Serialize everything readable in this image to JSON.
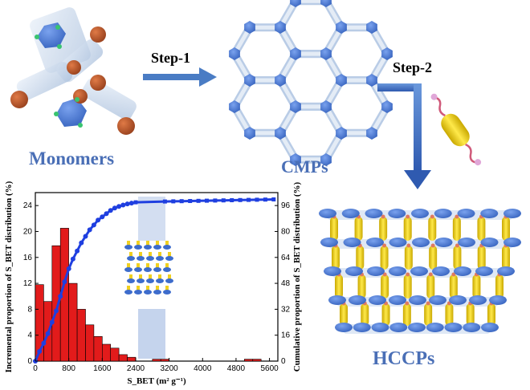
{
  "labels": {
    "monomers": "Monomers",
    "cmps": "CMPs",
    "hccps": "HCCPs",
    "step1": "Step-1",
    "step2": "Step-2"
  },
  "colors": {
    "label_blue": "#4a6fb6",
    "arrow_blue": "#4a7cc4",
    "node_blue": "#4f7fd6",
    "bar_red": "#e21b1b",
    "curve_blue": "#1f3fe0",
    "rod_yellow": "#f3d21a",
    "cap_orange": "#b8542a"
  },
  "chart_data": {
    "type": "bar",
    "x_ticks": [
      "0",
      "800",
      "1600",
      "2400",
      "3200",
      "4000",
      "4800",
      "5600"
    ],
    "xlim": [
      0,
      5800
    ],
    "xlabel": "S_BET (m² g⁻¹)",
    "ylabel_left": "Incremental proportion of S_BET distribution (%)",
    "ylabel_right": "Cumulative proportion of S_BET distribution (%)",
    "ylim_left": [
      0,
      26
    ],
    "ylim_right": [
      0,
      104
    ],
    "y_ticks_left": [
      "0",
      "4",
      "8",
      "12",
      "16",
      "20",
      "24"
    ],
    "y_ticks_right": [
      "0",
      "16",
      "32",
      "48",
      "64",
      "80",
      "96"
    ],
    "bar_width": 200,
    "series": [
      {
        "kind": "bar",
        "axis": "left",
        "x": [
          100,
          300,
          500,
          700,
          900,
          1100,
          1300,
          1500,
          1700,
          1900,
          2100,
          2300,
          2900,
          3100,
          5100,
          5300
        ],
        "values": [
          11.8,
          9.2,
          17.8,
          20.5,
          12,
          8,
          5.6,
          3.8,
          2.6,
          2,
          1,
          0.6,
          0.3,
          0.3,
          0.3,
          0.3
        ]
      },
      {
        "kind": "line",
        "axis": "right",
        "x": [
          0,
          100,
          200,
          300,
          400,
          500,
          600,
          700,
          800,
          900,
          1000,
          1100,
          1200,
          1300,
          1400,
          1500,
          1600,
          1700,
          1800,
          1900,
          2000,
          2100,
          2200,
          2300,
          2400,
          3100,
          3300,
          3500,
          3700,
          3900,
          4100,
          4300,
          4500,
          4700,
          4900,
          5100,
          5300,
          5500,
          5700
        ],
        "values": [
          0,
          6,
          11,
          17,
          24,
          31,
          40,
          49,
          57,
          63,
          68,
          73,
          77,
          81,
          84,
          87,
          89,
          91,
          93,
          94.5,
          95.5,
          96.3,
          97,
          97.5,
          98,
          98.5,
          98.6,
          98.7,
          98.8,
          98.9,
          99,
          99.1,
          99.2,
          99.3,
          99.4,
          99.5,
          99.6,
          99.7,
          99.8
        ]
      }
    ]
  }
}
